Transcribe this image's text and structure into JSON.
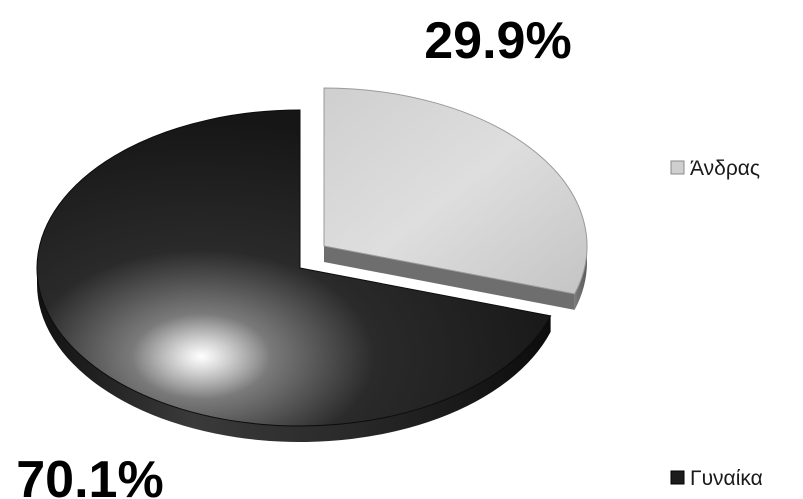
{
  "chart_data": {
    "type": "pie",
    "style": "3d-exploded",
    "categories": [
      "Άνδρας",
      "Γυναίκα"
    ],
    "values": [
      29.9,
      70.1
    ],
    "data_labels": [
      "29.9%",
      "70.1%"
    ],
    "colors": [
      "#d8d8d8",
      "#1c1c1c"
    ],
    "legend": {
      "position": "right",
      "entries": [
        "Άνδρας",
        "Γυναίκα"
      ]
    }
  }
}
